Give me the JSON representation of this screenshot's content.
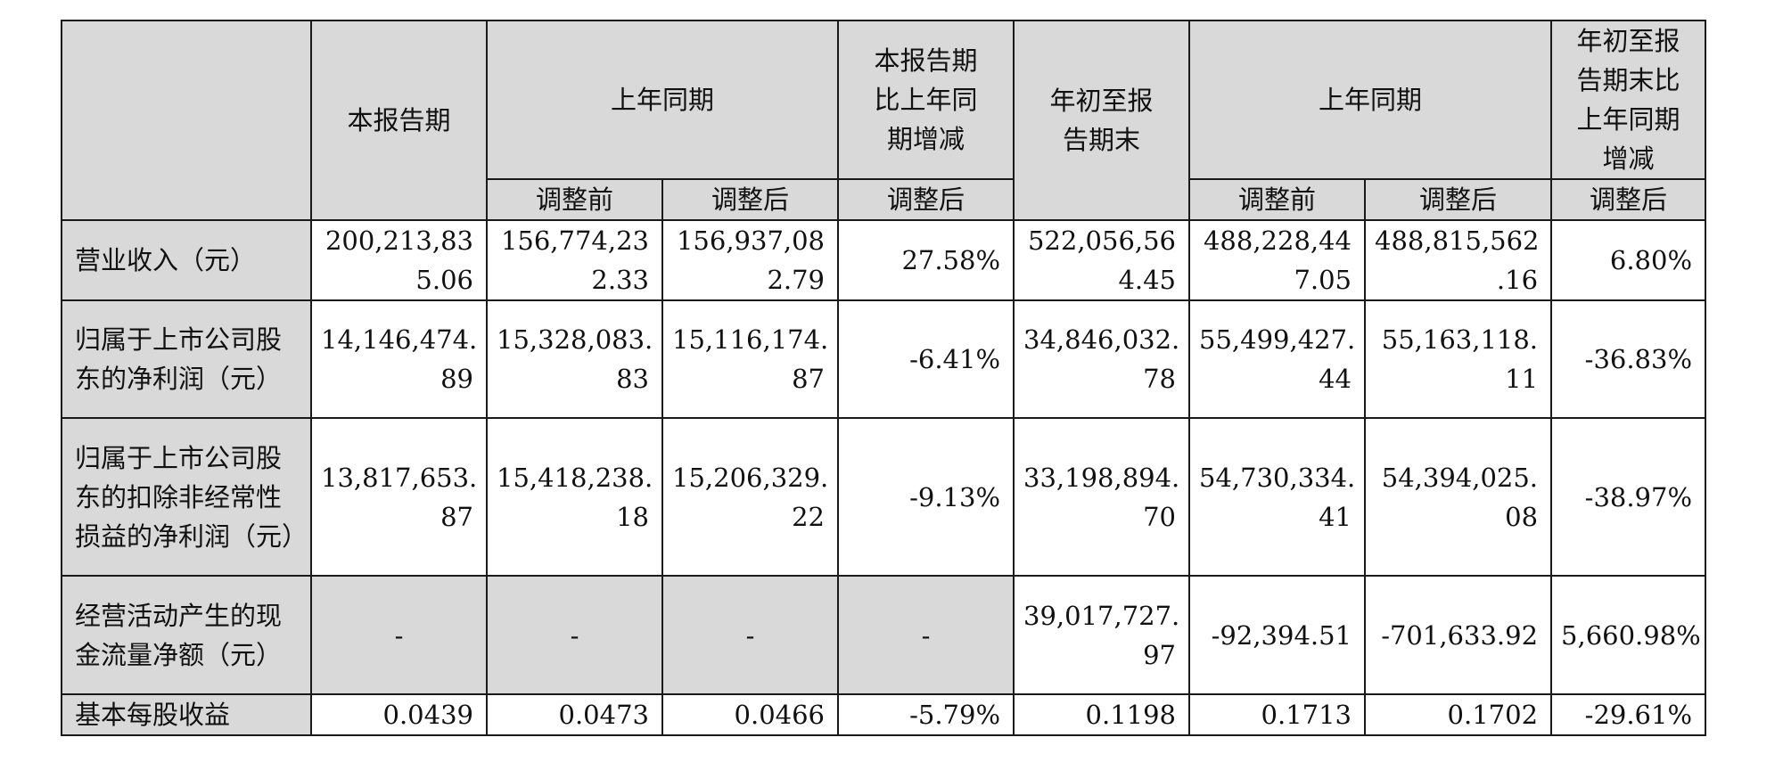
{
  "header": {
    "current_period": "本报告期",
    "prior_year_same_period": "上年同期",
    "yoy_change_period": "本报告期比上年同期增减",
    "ytd_end": "年初至报告期末",
    "prior_year_same_period_ytd": "上年同期",
    "ytd_yoy_change": "年初至报告期末比上年同期增减",
    "before_adjustment": "调整前",
    "after_adjustment": "调整后"
  },
  "rows": [
    {
      "label": "营业收入（元）",
      "current": [
        "200,213,83",
        "5.06"
      ],
      "prior_before": [
        "156,774,23",
        "2.33"
      ],
      "prior_after": [
        "156,937,08",
        "2.79"
      ],
      "change": "27.58%",
      "ytd": [
        "522,056,56",
        "4.45"
      ],
      "ytd_prior_before": [
        "488,228,44",
        "7.05"
      ],
      "ytd_prior_after": [
        "488,815,562",
        ".16"
      ],
      "ytd_change": "6.80%"
    },
    {
      "label": "归属于上市公司股东的净利润（元）",
      "current": [
        "14,146,474.",
        "89"
      ],
      "prior_before": [
        "15,328,083.",
        "83"
      ],
      "prior_after": [
        "15,116,174.",
        "87"
      ],
      "change": "-6.41%",
      "ytd": [
        "34,846,032.",
        "78"
      ],
      "ytd_prior_before": [
        "55,499,427.",
        "44"
      ],
      "ytd_prior_after": [
        "55,163,118.",
        "11"
      ],
      "ytd_change": "-36.83%"
    },
    {
      "label": "归属于上市公司股东的扣除非经常性损益的净利润（元）",
      "current": [
        "13,817,653.",
        "87"
      ],
      "prior_before": [
        "15,418,238.",
        "18"
      ],
      "prior_after": [
        "15,206,329.",
        "22"
      ],
      "change": "-9.13%",
      "ytd": [
        "33,198,894.",
        "70"
      ],
      "ytd_prior_before": [
        "54,730,334.",
        "41"
      ],
      "ytd_prior_after": [
        "54,394,025.",
        "08"
      ],
      "ytd_change": "-38.97%"
    },
    {
      "label": "经营活动产生的现金流量净额（元）",
      "current": "-",
      "prior_before": "-",
      "prior_after": "-",
      "change": "-",
      "ytd": [
        "39,017,727.",
        "97"
      ],
      "ytd_prior_before": "-92,394.51",
      "ytd_prior_after": "-701,633.92",
      "ytd_change": "5,660.98%"
    },
    {
      "label": "基本每股收益",
      "current": "0.0439",
      "prior_before": "0.0473",
      "prior_after": "0.0466",
      "change": "-5.79%",
      "ytd": "0.1198",
      "ytd_prior_before": "0.1713",
      "ytd_prior_after": "0.1702",
      "ytd_change": "-29.61%"
    }
  ],
  "colors": {
    "header_fill": "#d9d9d9",
    "border": "#1a1a1a"
  }
}
